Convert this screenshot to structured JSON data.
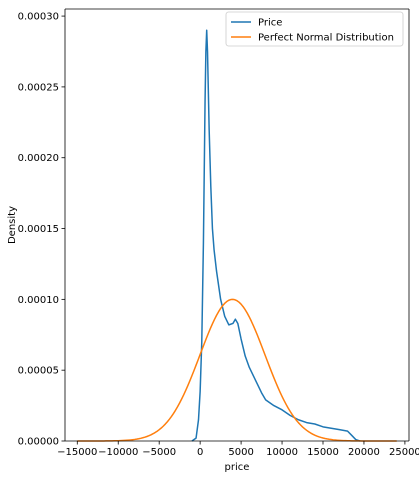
{
  "chart_data": {
    "type": "line",
    "xlabel": "price",
    "ylabel": "Density",
    "xlim": [
      -16500,
      25500
    ],
    "ylim": [
      0,
      0.000305
    ],
    "xticks": [
      -15000,
      -10000,
      -5000,
      0,
      5000,
      10000,
      15000,
      20000,
      25000
    ],
    "xtick_labels": [
      "−15000",
      "−10000",
      "−5000",
      "0",
      "5000",
      "10000",
      "15000",
      "20000",
      "25000"
    ],
    "yticks": [
      0,
      5e-05,
      0.0001,
      0.00015,
      0.0002,
      0.00025,
      0.0003
    ],
    "ytick_labels": [
      "0.00000",
      "0.00005",
      "0.00010",
      "0.00015",
      "0.00020",
      "0.00025",
      "0.00030"
    ],
    "grid": false,
    "legend_position": "top-right",
    "series": [
      {
        "name": "Price",
        "color": "#1f77b4",
        "points": [
          [
            -1000,
            0
          ],
          [
            -500,
            2e-06
          ],
          [
            -200,
            1.5e-05
          ],
          [
            0,
            3.5e-05
          ],
          [
            200,
            7e-05
          ],
          [
            400,
            0.00014
          ],
          [
            600,
            0.00024
          ],
          [
            700,
            0.000275
          ],
          [
            800,
            0.00029
          ],
          [
            900,
            0.000275
          ],
          [
            1100,
            0.00022
          ],
          [
            1300,
            0.00018
          ],
          [
            1500,
            0.00015
          ],
          [
            1700,
            0.000135
          ],
          [
            2000,
            0.00012
          ],
          [
            2500,
            0.0001
          ],
          [
            3000,
            8.8e-05
          ],
          [
            3500,
            8.2e-05
          ],
          [
            4000,
            8.3e-05
          ],
          [
            4300,
            8.6e-05
          ],
          [
            4600,
            8.3e-05
          ],
          [
            5000,
            7.2e-05
          ],
          [
            5500,
            6e-05
          ],
          [
            6000,
            5.2e-05
          ],
          [
            6500,
            4.6e-05
          ],
          [
            7000,
            4e-05
          ],
          [
            7500,
            3.4e-05
          ],
          [
            8000,
            2.9e-05
          ],
          [
            8500,
            2.7e-05
          ],
          [
            9000,
            2.5e-05
          ],
          [
            10000,
            2.2e-05
          ],
          [
            11000,
            1.8e-05
          ],
          [
            12000,
            1.5e-05
          ],
          [
            13000,
            1.3e-05
          ],
          [
            14000,
            1.2e-05
          ],
          [
            15000,
            1e-05
          ],
          [
            16000,
            9e-06
          ],
          [
            17000,
            8e-06
          ],
          [
            18000,
            7e-06
          ],
          [
            18500,
            4e-06
          ],
          [
            19000,
            1e-06
          ],
          [
            19500,
            0
          ]
        ]
      },
      {
        "name": "Perfect Normal Distribution",
        "color": "#ff7f0e",
        "normal": {
          "mean": 3950,
          "sd": 3980,
          "peak": 0.0001,
          "x_from": -15000,
          "x_to": 24000
        }
      }
    ]
  }
}
